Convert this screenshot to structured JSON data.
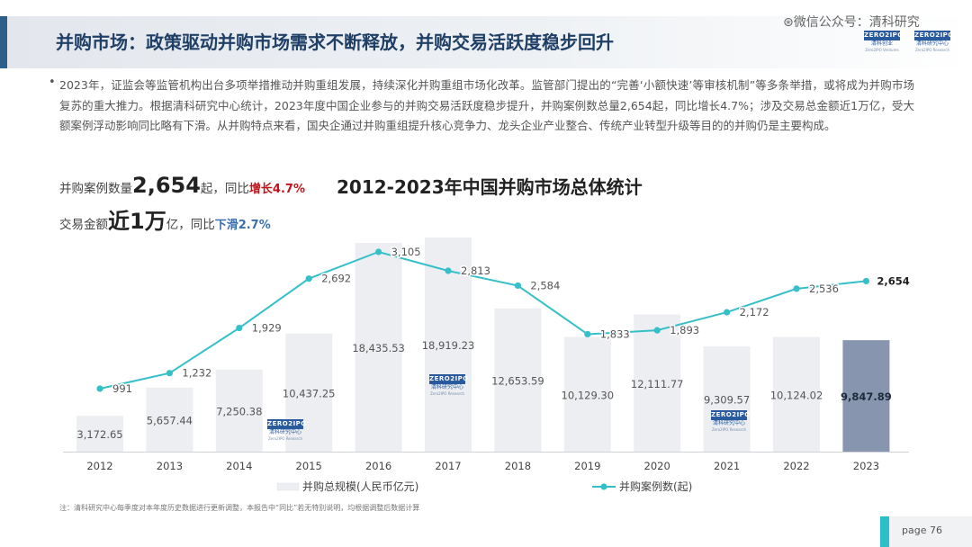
{
  "header": {
    "title": "并购市场：政策驱动并购市场需求不断释放，并购交易活跃度稳步回升",
    "watermark": "微信公众号：清科研究",
    "logo_left": {
      "badge": "ZERO2IPO",
      "name": "清科创业",
      "sub": "Zero2IPO Ventures"
    },
    "logo_right": {
      "badge": "ZERO2IPO",
      "name": "清科研究中心",
      "sub": "Zero2IPO Research"
    }
  },
  "summary": {
    "bullet": "•",
    "text": "2023年，证监会等监管机构出台多项举措推动并购重组发展，持续深化并购重组市场化改革。监管部门提出的“完善‘小额快速’等审核机制”等多条举措，或将成为并购市场复苏的重大推力。根据清科研究中心统计，2023年度中国企业参与的并购交易活跃度稳步提升，并购案例数总量2,654起，同比增长4.7%；涉及交易总金额近1万亿，受大额案例浮动影响同比略有下滑。从并购特点来看，国央企通过并购重组提升核心竞争力、龙头企业产业整合、传统产业转型升级等目的的并购仍是主要构成。"
  },
  "stats": {
    "count": {
      "label": "并购案例数量",
      "value": "2,654",
      "unit": "起，同比",
      "change": "增长4.7%"
    },
    "amount": {
      "label": "交易金额",
      "value": "近1万",
      "unit": "亿，同比",
      "change": "下滑2.7%"
    }
  },
  "inchart_logo": {
    "badge": "ZERO2IPO",
    "name": "清科研究中心",
    "sub": "Zero2IPO Research"
  },
  "chart_data": {
    "type": "bar+line",
    "title": "2012-2023年中国并购市场总体统计",
    "categories": [
      "2012",
      "2013",
      "2014",
      "2015",
      "2016",
      "2017",
      "2018",
      "2019",
      "2020",
      "2021",
      "2022",
      "2023"
    ],
    "series": [
      {
        "name": "并购总规模(人民币亿元)",
        "type": "bar",
        "values": [
          3172.65,
          5657.44,
          7250.38,
          10437.25,
          18435.53,
          18919.23,
          12653.59,
          10129.3,
          12111.77,
          9309.57,
          10124.02,
          9847.89
        ],
        "labels": [
          "3,172.65",
          "5,657.44",
          "7,250.38",
          "10,437.25",
          "18,435.53",
          "18,919.23",
          "12,653.59",
          "10,129.30",
          "12,111.77",
          "9,309.57",
          "10,124.02",
          "9,847.89"
        ],
        "color": "#eceef1",
        "highlight_color": "#8796ae",
        "highlight_index": 11
      },
      {
        "name": "并购案例数(起)",
        "type": "line",
        "values": [
          991,
          1232,
          1929,
          2692,
          3105,
          2813,
          2584,
          1833,
          1893,
          2172,
          2536,
          2654
        ],
        "labels": [
          "991",
          "1,232",
          "1,929",
          "2,692",
          "3,105",
          "2,813",
          "2,584",
          "1,833",
          "1,893",
          "2,172",
          "2,536",
          "2,654"
        ],
        "color": "#35c0c9"
      }
    ],
    "grid": false,
    "legend": "bottom"
  },
  "footer": {
    "note": "注：清科研究中心每季度对本年度历史数据进行更新调整，本报告中“同比”若无特别说明，均根据调整后数据计算",
    "page": "page  76"
  }
}
